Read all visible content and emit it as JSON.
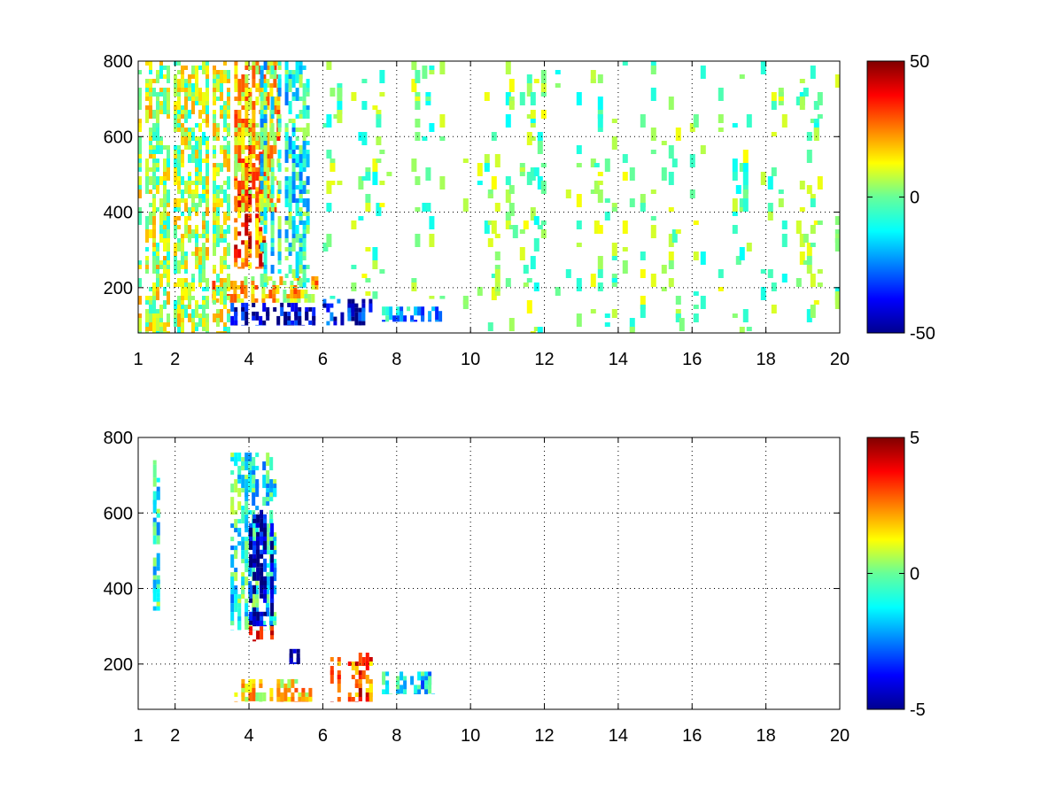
{
  "chart_data": [
    {
      "type": "heatmap",
      "title": "",
      "xlabel": "",
      "ylabel": "",
      "xlim": [
        1,
        20
      ],
      "ylim": [
        80,
        800
      ],
      "grid": true,
      "grid_style": "dotted",
      "xticks": [
        1,
        2,
        4,
        6,
        8,
        10,
        12,
        14,
        16,
        18,
        20
      ],
      "xtick_labels": [
        "1",
        "2",
        "4",
        "6",
        "8",
        "10",
        "12",
        "14",
        "16",
        "18",
        "20"
      ],
      "yticks": [
        200,
        400,
        600,
        800
      ],
      "ytick_labels": [
        "200",
        "400",
        "600",
        "800"
      ],
      "colorbar": {
        "colormap": "jet",
        "clim": [
          -50,
          50
        ],
        "ticks": [
          -50,
          0,
          50
        ],
        "tick_labels": [
          "-50",
          "0",
          "50"
        ]
      },
      "regions": [
        {
          "x": [
            3.5,
            5.8
          ],
          "y": [
            100,
            160
          ],
          "value": -45
        },
        {
          "x": [
            6.0,
            7.3
          ],
          "y": [
            100,
            170
          ],
          "value": -40
        },
        {
          "x": [
            7.6,
            9.2
          ],
          "y": [
            110,
            150
          ],
          "value": -20
        },
        {
          "x": [
            3.0,
            5.8
          ],
          "y": [
            160,
            230
          ],
          "value": 15
        },
        {
          "x": [
            3.5,
            4.4
          ],
          "y": [
            250,
            560
          ],
          "value": 30
        },
        {
          "x": [
            3.6,
            4.8
          ],
          "y": [
            400,
            800
          ],
          "value": 18
        },
        {
          "x": [
            4.3,
            5.6
          ],
          "y": [
            200,
            800
          ],
          "value": -10
        },
        {
          "x": [
            1.0,
            3.4
          ],
          "y": [
            80,
            800
          ],
          "value": 5
        },
        {
          "x": [
            6.0,
            9.3
          ],
          "y": [
            170,
            800
          ],
          "value": 0
        },
        {
          "x": [
            9.8,
            20.0
          ],
          "y": [
            80,
            800
          ],
          "value": 0
        }
      ]
    },
    {
      "type": "heatmap",
      "title": "",
      "xlabel": "",
      "ylabel": "",
      "xlim": [
        1,
        20
      ],
      "ylim": [
        80,
        800
      ],
      "grid": true,
      "grid_style": "dotted",
      "xticks": [
        1,
        2,
        4,
        6,
        8,
        10,
        12,
        14,
        16,
        18,
        20
      ],
      "xtick_labels": [
        "1",
        "2",
        "4",
        "6",
        "8",
        "10",
        "12",
        "14",
        "16",
        "18",
        "20"
      ],
      "yticks": [
        200,
        400,
        600,
        800
      ],
      "ytick_labels": [
        "200",
        "400",
        "600",
        "800"
      ],
      "colorbar": {
        "colormap": "jet",
        "clim": [
          -5,
          5
        ],
        "ticks": [
          -5,
          0,
          5
        ],
        "tick_labels": [
          "-5",
          "0",
          "5"
        ]
      },
      "regions": [
        {
          "x": [
            3.6,
            5.8
          ],
          "y": [
            100,
            160
          ],
          "value": 1.5
        },
        {
          "x": [
            6.2,
            7.3
          ],
          "y": [
            100,
            230
          ],
          "value": 3
        },
        {
          "x": [
            7.6,
            9.0
          ],
          "y": [
            120,
            180
          ],
          "value": -1.5
        },
        {
          "x": [
            3.5,
            4.7
          ],
          "y": [
            290,
            760
          ],
          "value": -1
        },
        {
          "x": [
            4.0,
            4.6
          ],
          "y": [
            300,
            620
          ],
          "value": -4.5
        },
        {
          "x": [
            4.0,
            4.6
          ],
          "y": [
            260,
            300
          ],
          "value": 4.5
        },
        {
          "x": [
            5.0,
            5.5
          ],
          "y": [
            200,
            240
          ],
          "value": -4.5
        },
        {
          "x": [
            1.4,
            1.5
          ],
          "y": [
            330,
            740
          ],
          "value": -1
        }
      ]
    }
  ]
}
